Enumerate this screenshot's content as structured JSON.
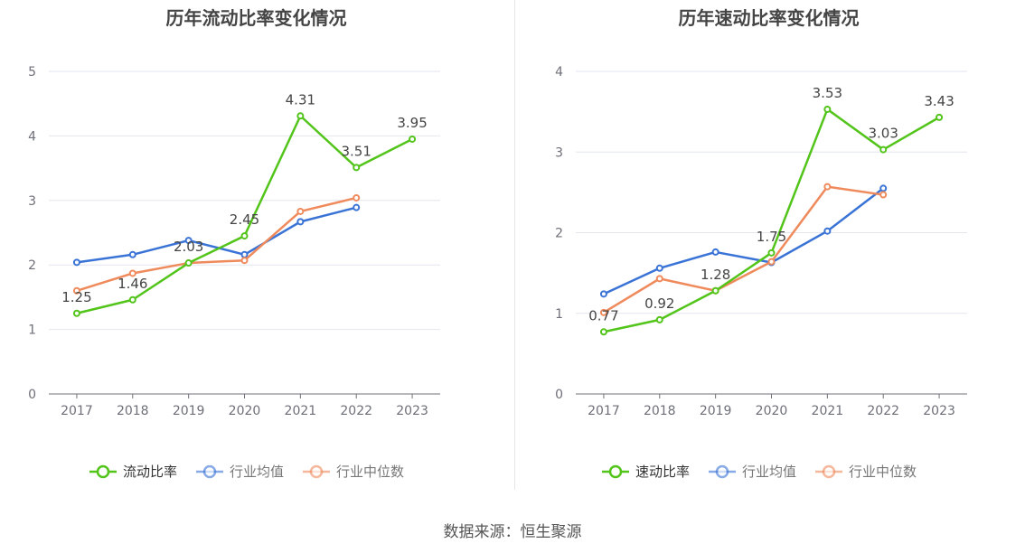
{
  "footer": {
    "source": "数据来源：恒生聚源"
  },
  "colors": {
    "main": "#52c41a",
    "avg": "#3a73d6",
    "median": "#ef8a5c",
    "grid": "#e3e6ef",
    "axis": "#6e7079",
    "tick": "#6e7079"
  },
  "chart_data": [
    {
      "type": "line",
      "title": "历年流动比率变化情况",
      "x": [
        "2017",
        "2018",
        "2019",
        "2020",
        "2021",
        "2022",
        "2023"
      ],
      "ylim": [
        0,
        5
      ],
      "yticks": [
        "0",
        "1",
        "2",
        "3",
        "4",
        "5"
      ],
      "grid": true,
      "legend": "bottom",
      "series": [
        {
          "name": "流动比率",
          "values": [
            1.25,
            1.46,
            2.03,
            2.45,
            4.31,
            3.51,
            3.95
          ],
          "labels": [
            "1.25",
            "1.46",
            "2.03",
            "2.45",
            "4.31",
            "3.51",
            "3.95"
          ],
          "color": "#52c41a"
        },
        {
          "name": "行业均值",
          "values": [
            2.04,
            2.16,
            2.38,
            2.16,
            2.67,
            2.89,
            null
          ],
          "color": "#3a73d6"
        },
        {
          "name": "行业中位数",
          "values": [
            1.6,
            1.87,
            2.03,
            2.07,
            2.83,
            3.04,
            null
          ],
          "color": "#ef8a5c"
        }
      ]
    },
    {
      "type": "line",
      "title": "历年速动比率变化情况",
      "x": [
        "2017",
        "2018",
        "2019",
        "2020",
        "2021",
        "2022",
        "2023"
      ],
      "ylim": [
        0,
        4
      ],
      "yticks": [
        "0",
        "1",
        "2",
        "3",
        "4"
      ],
      "grid": true,
      "legend": "bottom",
      "series": [
        {
          "name": "速动比率",
          "values": [
            0.77,
            0.92,
            1.28,
            1.75,
            3.53,
            3.03,
            3.43
          ],
          "labels": [
            "0.77",
            "0.92",
            "1.28",
            "1.75",
            "3.53",
            "3.03",
            "3.43"
          ],
          "color": "#52c41a"
        },
        {
          "name": "行业均值",
          "values": [
            1.24,
            1.56,
            1.76,
            1.63,
            2.02,
            2.55,
            null
          ],
          "color": "#3a73d6"
        },
        {
          "name": "行业中位数",
          "values": [
            1.01,
            1.43,
            1.28,
            1.64,
            2.57,
            2.47,
            null
          ],
          "color": "#ef8a5c"
        }
      ]
    }
  ]
}
